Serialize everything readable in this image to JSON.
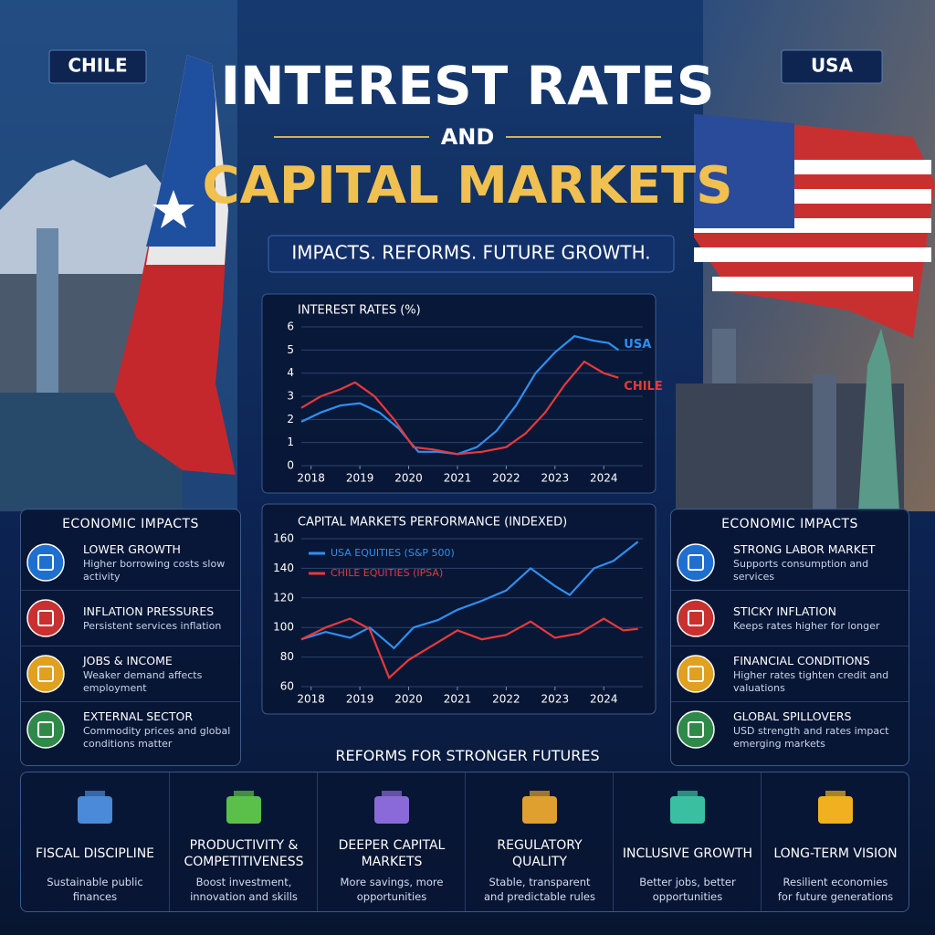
{
  "header": {
    "left_label": "CHILE",
    "right_label": "USA",
    "title_line1": "INTEREST RATES",
    "title_connector": "AND",
    "title_line2": "CAPITAL MARKETS",
    "tagline": "IMPACTS. REFORMS. FUTURE GROWTH."
  },
  "chart_data": [
    {
      "type": "line",
      "title": "INTEREST RATES (%)",
      "legend": "inline",
      "xlim": [
        2017.8,
        2024.8
      ],
      "xticks": [
        2018,
        2019,
        2020,
        2021,
        2022,
        2023,
        2024
      ],
      "ylim": [
        0,
        6
      ],
      "yticks": [
        0,
        1,
        2,
        3,
        4,
        5,
        6
      ],
      "series": [
        {
          "name": "USA",
          "color": "#2f8ff0",
          "x": [
            2017.8,
            2018.2,
            2018.6,
            2019.0,
            2019.4,
            2019.8,
            2020.2,
            2020.6,
            2021.0,
            2021.4,
            2021.8,
            2022.2,
            2022.6,
            2023.0,
            2023.4,
            2023.8,
            2024.1,
            2024.3
          ],
          "values": [
            1.9,
            2.3,
            2.6,
            2.7,
            2.3,
            1.6,
            0.6,
            0.6,
            0.5,
            0.8,
            1.5,
            2.6,
            4.0,
            4.9,
            5.6,
            5.4,
            5.3,
            5.0
          ]
        },
        {
          "name": "CHILE",
          "color": "#e8393a",
          "x": [
            2017.8,
            2018.2,
            2018.6,
            2018.9,
            2019.3,
            2019.7,
            2020.1,
            2020.5,
            2021.0,
            2021.5,
            2022.0,
            2022.4,
            2022.8,
            2023.2,
            2023.6,
            2024.0,
            2024.3
          ],
          "values": [
            2.5,
            3.0,
            3.3,
            3.6,
            3.0,
            2.0,
            0.8,
            0.7,
            0.5,
            0.6,
            0.8,
            1.4,
            2.3,
            3.5,
            4.5,
            4.0,
            3.8
          ]
        }
      ]
    },
    {
      "type": "line",
      "title": "CAPITAL MARKETS PERFORMANCE (INDEXED)",
      "legend": "upper left",
      "xlim": [
        2017.8,
        2024.8
      ],
      "xticks": [
        2018,
        2019,
        2020,
        2021,
        2022,
        2023,
        2024
      ],
      "ylim": [
        60,
        160
      ],
      "yticks": [
        60,
        80,
        100,
        120,
        140,
        160
      ],
      "series": [
        {
          "name": "USA EQUITIES (S&P 500)",
          "color": "#2f8ff0",
          "x": [
            2017.8,
            2018.3,
            2018.8,
            2019.2,
            2019.7,
            2020.1,
            2020.6,
            2021.0,
            2021.5,
            2022.0,
            2022.5,
            2023.0,
            2023.3,
            2023.8,
            2024.2,
            2024.7
          ],
          "values": [
            92,
            97,
            93,
            100,
            86,
            100,
            105,
            112,
            118,
            125,
            140,
            128,
            122,
            140,
            145,
            158
          ]
        },
        {
          "name": "CHILE EQUITIES (IPSA)",
          "color": "#e8393a",
          "x": [
            2017.8,
            2018.3,
            2018.8,
            2019.2,
            2019.6,
            2020.0,
            2020.5,
            2021.0,
            2021.5,
            2022.0,
            2022.5,
            2023.0,
            2023.5,
            2024.0,
            2024.4,
            2024.7
          ],
          "values": [
            92,
            100,
            106,
            99,
            66,
            78,
            88,
            98,
            92,
            95,
            104,
            93,
            96,
            106,
            98,
            99
          ]
        }
      ]
    }
  ],
  "left_panel": {
    "title": "ECONOMIC IMPACTS",
    "items": [
      {
        "title": "LOWER GROWTH",
        "desc": "Higher borrowing costs slow activity"
      },
      {
        "title": "INFLATION PRESSURES",
        "desc": "Persistent services inflation"
      },
      {
        "title": "JOBS & INCOME",
        "desc": "Weaker demand affects employment"
      },
      {
        "title": "EXTERNAL SECTOR",
        "desc": "Commodity prices and global conditions matter"
      }
    ]
  },
  "right_panel": {
    "title": "ECONOMIC IMPACTS",
    "items": [
      {
        "title": "STRONG LABOR MARKET",
        "desc": "Supports consumption and services"
      },
      {
        "title": "STICKY INFLATION",
        "desc": "Keeps rates higher for longer"
      },
      {
        "title": "FINANCIAL CONDITIONS",
        "desc": "Higher rates tighten credit and valuations"
      },
      {
        "title": "GLOBAL SPILLOVERS",
        "desc": "USD strength and rates impact emerging markets"
      }
    ]
  },
  "reforms": {
    "title": "REFORMS FOR STRONGER FUTURES",
    "items": [
      {
        "title": "FISCAL DISCIPLINE",
        "desc": "Sustainable public finances"
      },
      {
        "title": "PRODUCTIVITY & COMPETITIVENESS",
        "desc": "Boost investment, innovation and skills"
      },
      {
        "title": "DEEPER CAPITAL MARKETS",
        "desc": "More savings, more opportunities"
      },
      {
        "title": "REGULATORY QUALITY",
        "desc": "Stable, transparent and predictable rules"
      },
      {
        "title": "INCLUSIVE GROWTH",
        "desc": "Better jobs, better opportunities"
      },
      {
        "title": "LONG-TERM VISION",
        "desc": "Resilient economies for future generations"
      }
    ]
  }
}
